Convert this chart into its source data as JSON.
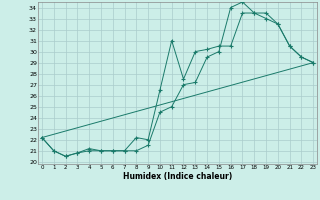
{
  "xlabel": "Humidex (Indice chaleur)",
  "background_color": "#cceee8",
  "grid_color": "#aacccc",
  "line_color": "#1a7a6a",
  "xlim": [
    -0.3,
    23.3
  ],
  "ylim": [
    19.8,
    34.5
  ],
  "xticks": [
    0,
    1,
    2,
    3,
    4,
    5,
    6,
    7,
    8,
    9,
    10,
    11,
    12,
    13,
    14,
    15,
    16,
    17,
    18,
    19,
    20,
    21,
    22,
    23
  ],
  "yticks": [
    20,
    21,
    22,
    23,
    24,
    25,
    26,
    27,
    28,
    29,
    30,
    31,
    32,
    33,
    34
  ],
  "line1_x": [
    0,
    1,
    2,
    3,
    4,
    5,
    6,
    7,
    8,
    9,
    10,
    11,
    12,
    13,
    14,
    15,
    16,
    17,
    18,
    19,
    20,
    21,
    22,
    23
  ],
  "line1_y": [
    22.2,
    21.0,
    20.5,
    20.8,
    21.0,
    21.0,
    21.0,
    21.0,
    21.0,
    21.5,
    24.5,
    25.0,
    27.0,
    27.2,
    29.5,
    30.0,
    34.0,
    34.5,
    33.5,
    33.5,
    32.5,
    30.5,
    29.5,
    29.0
  ],
  "line2_x": [
    0,
    1,
    2,
    3,
    4,
    5,
    6,
    7,
    8,
    9,
    10,
    11,
    12,
    13,
    14,
    15,
    16,
    17,
    18,
    19,
    20,
    21,
    22,
    23
  ],
  "line2_y": [
    22.2,
    21.0,
    20.5,
    20.8,
    21.2,
    21.0,
    21.0,
    21.0,
    22.2,
    22.0,
    26.5,
    31.0,
    27.5,
    30.0,
    30.2,
    30.5,
    30.5,
    33.5,
    33.5,
    33.0,
    32.5,
    30.5,
    29.5,
    29.0
  ],
  "line3_x": [
    0,
    23
  ],
  "line3_y": [
    22.2,
    29.0
  ]
}
